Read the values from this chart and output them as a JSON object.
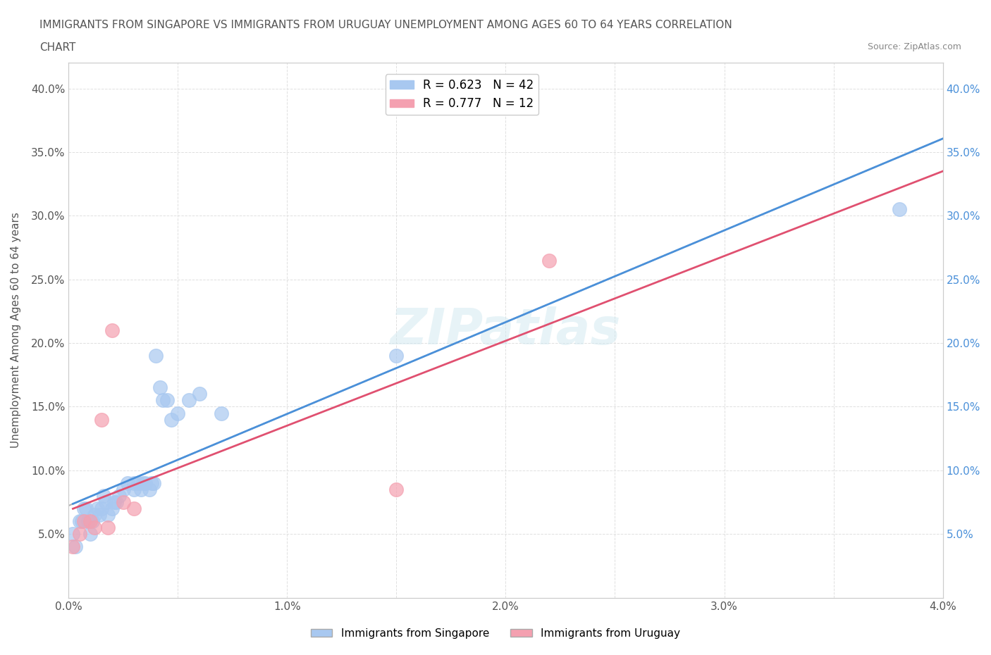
{
  "title_line1": "IMMIGRANTS FROM SINGAPORE VS IMMIGRANTS FROM URUGUAY UNEMPLOYMENT AMONG AGES 60 TO 64 YEARS CORRELATION",
  "title_line2": "CHART",
  "source": "Source: ZipAtlas.com",
  "xlabel": "",
  "ylabel": "Unemployment Among Ages 60 to 64 years",
  "xlim": [
    0.0,
    0.04
  ],
  "ylim": [
    0.0,
    0.42
  ],
  "xticks": [
    0.0,
    0.005,
    0.01,
    0.015,
    0.02,
    0.025,
    0.03,
    0.035,
    0.04
  ],
  "xticklabels": [
    "0.0%",
    "",
    "1.0%",
    "",
    "2.0%",
    "",
    "3.0%",
    "",
    "4.0%"
  ],
  "yticks": [
    0.0,
    0.05,
    0.1,
    0.15,
    0.2,
    0.25,
    0.3,
    0.35,
    0.4
  ],
  "yticklabels": [
    "",
    "5.0%",
    "10.0%",
    "15.0%",
    "20.0%",
    "25.0%",
    "30.0%",
    "35.0%",
    "40.0%"
  ],
  "singapore_color": "#a8c8f0",
  "uruguay_color": "#f4a0b0",
  "singapore_line_color": "#4a90d9",
  "uruguay_line_color": "#e05070",
  "trendline_color": "#c0c0c0",
  "singapore_R": 0.623,
  "singapore_N": 42,
  "uruguay_R": 0.777,
  "uruguay_N": 12,
  "singapore_x": [
    0.0002,
    0.0003,
    0.0005,
    0.0006,
    0.0007,
    0.0008,
    0.0009,
    0.001,
    0.0011,
    0.0012,
    0.0013,
    0.0014,
    0.0015,
    0.0016,
    0.0017,
    0.0018,
    0.002,
    0.0021,
    0.0022,
    0.0023,
    0.0025,
    0.0027,
    0.003,
    0.003,
    0.0032,
    0.0033,
    0.0034,
    0.0035,
    0.0037,
    0.0038,
    0.0039,
    0.004,
    0.0042,
    0.0043,
    0.0045,
    0.0047,
    0.005,
    0.0055,
    0.006,
    0.007,
    0.015,
    0.038
  ],
  "singapore_y": [
    0.05,
    0.04,
    0.06,
    0.06,
    0.07,
    0.07,
    0.06,
    0.05,
    0.06,
    0.065,
    0.07,
    0.065,
    0.07,
    0.08,
    0.075,
    0.065,
    0.07,
    0.075,
    0.075,
    0.08,
    0.085,
    0.09,
    0.09,
    0.085,
    0.09,
    0.085,
    0.09,
    0.09,
    0.085,
    0.09,
    0.09,
    0.19,
    0.165,
    0.155,
    0.155,
    0.14,
    0.145,
    0.155,
    0.16,
    0.145,
    0.19,
    0.305
  ],
  "uruguay_x": [
    0.0002,
    0.0005,
    0.0007,
    0.001,
    0.0012,
    0.0015,
    0.0018,
    0.002,
    0.0025,
    0.003,
    0.015,
    0.022
  ],
  "uruguay_y": [
    0.04,
    0.05,
    0.06,
    0.06,
    0.055,
    0.14,
    0.055,
    0.21,
    0.075,
    0.07,
    0.085,
    0.265
  ],
  "watermark": "ZIPatlas",
  "background_color": "#ffffff",
  "grid_color": "#e0e0e0"
}
